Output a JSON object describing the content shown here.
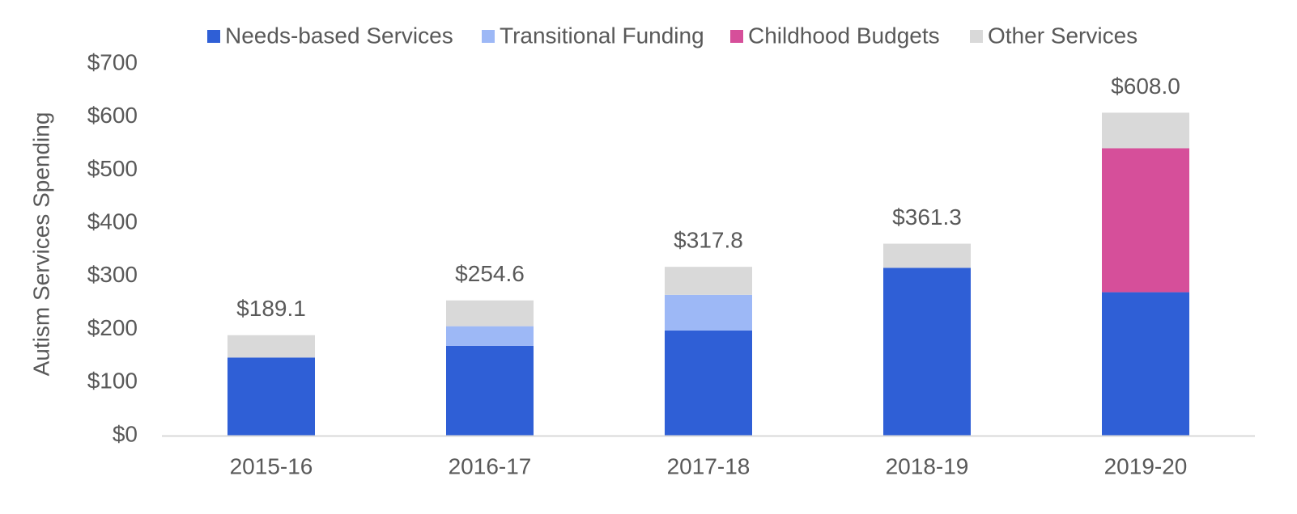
{
  "chart_data": {
    "type": "bar",
    "stacked": true,
    "categories": [
      "2015-16",
      "2016-17",
      "2017-18",
      "2018-19",
      "2019-20"
    ],
    "series": [
      {
        "name": "Needs-based Services",
        "color": "#2f5fd6",
        "values": [
          147,
          169,
          198,
          316,
          270
        ]
      },
      {
        "name": "Transitional Funding",
        "color": "#9db8f6",
        "values": [
          0,
          37,
          67,
          0,
          0
        ]
      },
      {
        "name": "Childhood Budgets",
        "color": "#d64f9a",
        "values": [
          0,
          0,
          0,
          0,
          271
        ]
      },
      {
        "name": "Other Services",
        "color": "#d9d9d9",
        "values": [
          42.1,
          48.6,
          52.8,
          45.3,
          67.0
        ]
      }
    ],
    "totals": [
      "$189.1",
      "$254.6",
      "$317.8",
      "$361.3",
      "$608.0"
    ],
    "ylabel": "Autism Services Spending",
    "ylim": [
      0,
      700
    ],
    "yticks": [
      0,
      100,
      200,
      300,
      400,
      500,
      600,
      700
    ],
    "ytick_labels": [
      "$0",
      "$100",
      "$200",
      "$300",
      "$400",
      "$500",
      "$600",
      "$700"
    ],
    "legend_position": "top",
    "grid": false
  }
}
